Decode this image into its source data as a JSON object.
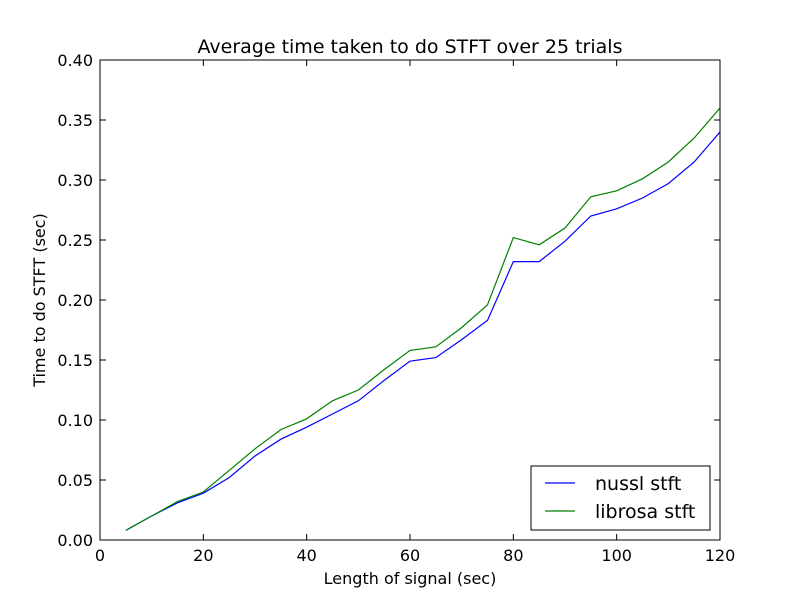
{
  "chart_data": {
    "type": "line",
    "title": "Average time taken to do STFT over 25 trials",
    "xlabel": "Length of signal (sec)",
    "ylabel": "Time to do STFT (sec)",
    "xlim": [
      0,
      120
    ],
    "ylim": [
      0,
      0.4
    ],
    "x_ticks": [
      0,
      20,
      40,
      60,
      80,
      100,
      120
    ],
    "y_ticks": [
      0.0,
      0.05,
      0.1,
      0.15,
      0.2,
      0.25,
      0.3,
      0.35,
      0.4
    ],
    "x_tick_labels": [
      "0",
      "20",
      "40",
      "60",
      "80",
      "100",
      "120"
    ],
    "y_tick_labels": [
      "0.00",
      "0.05",
      "0.10",
      "0.15",
      "0.20",
      "0.25",
      "0.30",
      "0.35",
      "0.40"
    ],
    "grid": false,
    "legend_position": "bottom-right",
    "x": [
      5,
      10,
      15,
      20,
      25,
      30,
      35,
      40,
      45,
      50,
      55,
      60,
      65,
      70,
      75,
      80,
      85,
      90,
      95,
      100,
      105,
      110,
      115,
      120
    ],
    "series": [
      {
        "name": "nussl stft",
        "color": "#0000ff",
        "values": [
          0.008,
          0.02,
          0.031,
          0.039,
          0.052,
          0.07,
          0.084,
          0.094,
          0.105,
          0.116,
          0.133,
          0.149,
          0.152,
          0.167,
          0.183,
          0.232,
          0.232,
          0.249,
          0.27,
          0.276,
          0.285,
          0.297,
          0.315,
          0.34
        ]
      },
      {
        "name": "librosa stft",
        "color": "#008000",
        "values": [
          0.008,
          0.02,
          0.032,
          0.04,
          0.058,
          0.076,
          0.092,
          0.101,
          0.116,
          0.125,
          0.142,
          0.158,
          0.161,
          0.177,
          0.196,
          0.252,
          0.246,
          0.26,
          0.286,
          0.291,
          0.301,
          0.315,
          0.335,
          0.36
        ]
      }
    ]
  }
}
